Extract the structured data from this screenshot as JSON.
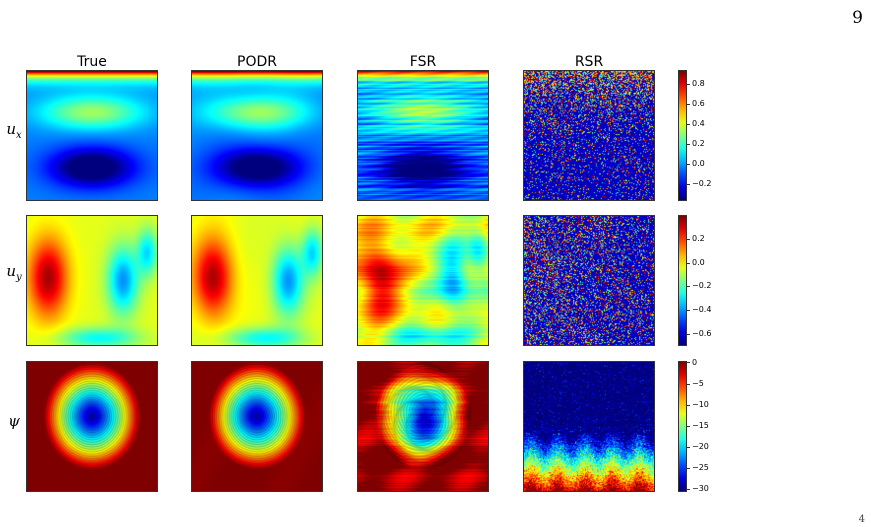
{
  "page_number": "9",
  "corner_mark": "4",
  "columns": [
    "True",
    "PODR",
    "FSR",
    "RSR"
  ],
  "rows": [
    {
      "symbol": "u",
      "subscript": "x"
    },
    {
      "symbol": "u",
      "subscript": "y"
    },
    {
      "symbol": "ψ",
      "subscript": ""
    }
  ],
  "colorbars": [
    {
      "ticks": [
        "0.8",
        "0.6",
        "0.4",
        "0.2",
        "0.0",
        "−0.2"
      ]
    },
    {
      "ticks": [
        "0.2",
        "0.0",
        "−0.2",
        "−0.4",
        "−0.6"
      ]
    },
    {
      "ticks": [
        "0",
        "−5",
        "−10",
        "−15",
        "−20",
        "−25",
        "−30"
      ]
    }
  ],
  "colormap": "jet",
  "chart_data": [
    {
      "type": "heatmap",
      "title": "",
      "row": "u_x",
      "panels": [
        "True",
        "PODR",
        "FSR",
        "RSR"
      ],
      "colorbar_range": [
        -0.35,
        0.95
      ]
    },
    {
      "type": "heatmap",
      "title": "",
      "row": "u_y",
      "panels": [
        "True",
        "PODR",
        "FSR",
        "RSR"
      ],
      "colorbar_range": [
        -0.7,
        0.38
      ]
    },
    {
      "type": "heatmap",
      "title": "",
      "row": "psi",
      "panels": [
        "True",
        "PODR",
        "FSR",
        "RSR"
      ],
      "colorbar_range": [
        -31,
        0
      ],
      "contours": true
    }
  ]
}
